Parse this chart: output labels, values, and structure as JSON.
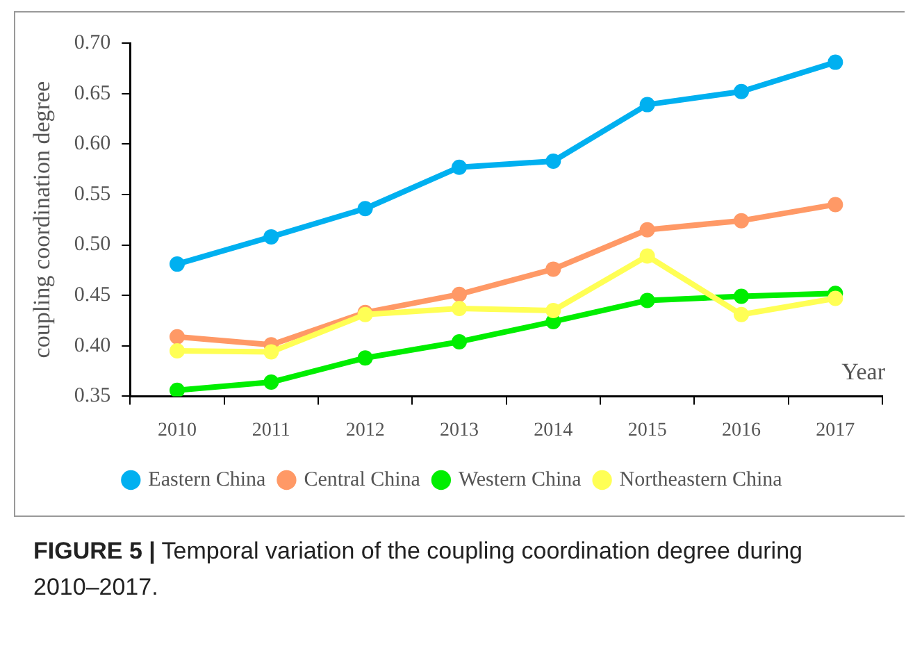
{
  "chart_data": {
    "type": "line",
    "xlabel": "Year",
    "ylabel": "coupling coordination degree",
    "categories": [
      "2010",
      "2011",
      "2012",
      "2013",
      "2014",
      "2015",
      "2016",
      "2017"
    ],
    "series": [
      {
        "name": "Eastern China",
        "color": "#00b0f0",
        "values": [
          0.481,
          0.508,
          0.536,
          0.577,
          0.583,
          0.639,
          0.652,
          0.681
        ]
      },
      {
        "name": "Central China",
        "color": "#ff9966",
        "values": [
          0.409,
          0.401,
          0.433,
          0.451,
          0.476,
          0.515,
          0.524,
          0.54
        ]
      },
      {
        "name": "Western China",
        "color": "#00ee00",
        "values": [
          0.356,
          0.364,
          0.388,
          0.404,
          0.424,
          0.445,
          0.449,
          0.452
        ]
      },
      {
        "name": "Northeastern China",
        "color": "#ffff55",
        "values": [
          0.395,
          0.394,
          0.431,
          0.437,
          0.435,
          0.489,
          0.431,
          0.447
        ]
      }
    ],
    "ylim": [
      0.35,
      0.7
    ],
    "yticks": [
      {
        "value": 0.35,
        "label": "0.35"
      },
      {
        "value": 0.4,
        "label": "0.40"
      },
      {
        "value": 0.45,
        "label": "0.45"
      },
      {
        "value": 0.5,
        "label": "0.50"
      },
      {
        "value": 0.55,
        "label": "0.55"
      },
      {
        "value": 0.6,
        "label": "0.60"
      },
      {
        "value": 0.65,
        "label": "0.65"
      },
      {
        "value": 0.7,
        "label": "0.70"
      }
    ],
    "grid": false,
    "legend": "bottom",
    "marker": "circle",
    "line_style": "solid",
    "annotations": [
      "FIGURE 5 | Temporal variation of the coupling coordination degree during 2010–2017."
    ]
  }
}
